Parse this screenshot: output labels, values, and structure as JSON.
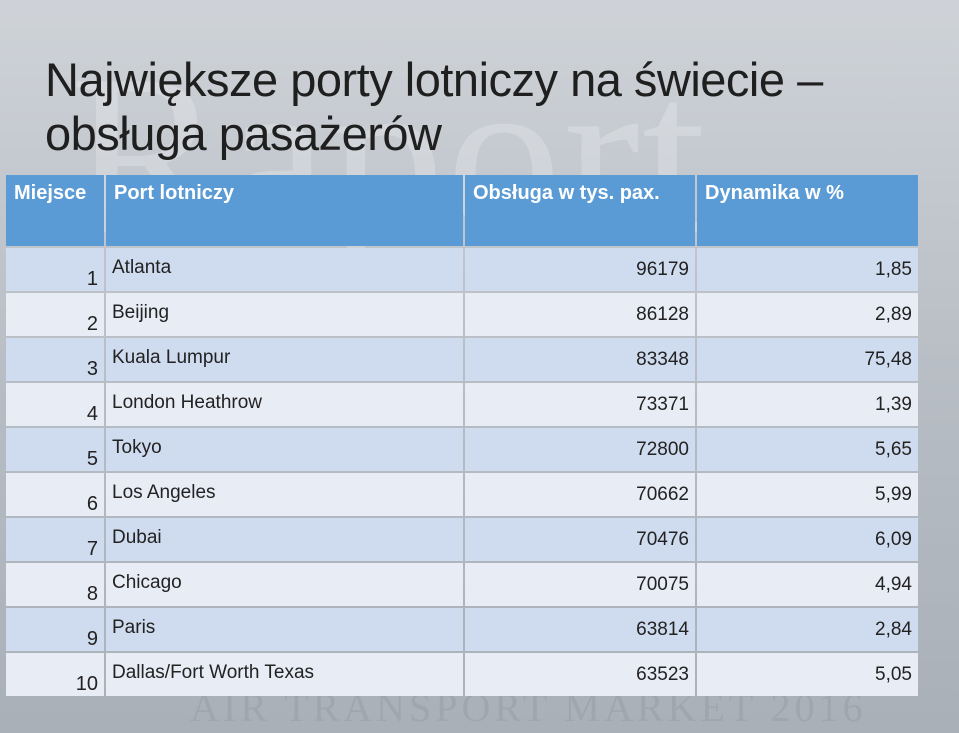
{
  "title": {
    "line1": "Największe porty lotniczy na świecie –",
    "line2": "obsługa pasażerów"
  },
  "watermark": {
    "text": "Raport",
    "bottom_text": "AIR TRANSPORT MARKET 2016"
  },
  "table": {
    "headers": [
      "Miejsce",
      "Port lotniczy",
      "Obsługa w tys. pax.",
      "Dynamika w %"
    ],
    "rows": [
      {
        "rank": "1",
        "airport": "Atlanta",
        "pax": "96179",
        "growth": "1,85"
      },
      {
        "rank": "2",
        "airport": "Beijing",
        "pax": "86128",
        "growth": "2,89"
      },
      {
        "rank": "3",
        "airport": "Kuala Lumpur",
        "pax": "83348",
        "growth": "75,48"
      },
      {
        "rank": "4",
        "airport": "London Heathrow",
        "pax": "73371",
        "growth": "1,39"
      },
      {
        "rank": "5",
        "airport": "Tokyo",
        "pax": "72800",
        "growth": "5,65"
      },
      {
        "rank": "6",
        "airport": "Los Angeles",
        "pax": "70662",
        "growth": "5,99"
      },
      {
        "rank": "7",
        "airport": "Dubai",
        "pax": "70476",
        "growth": "6,09"
      },
      {
        "rank": "8",
        "airport": "Chicago",
        "pax": "70075",
        "growth": "4,94"
      },
      {
        "rank": "9",
        "airport": "Paris",
        "pax": "63814",
        "growth": "2,84"
      },
      {
        "rank": "10",
        "airport": "Dallas/Fort Worth Texas",
        "pax": "63523",
        "growth": "5,05"
      }
    ]
  },
  "colors": {
    "header_bg": "#5b9bd5",
    "row_odd_bg": "#cfdbee",
    "row_even_bg": "#e8ecf5"
  }
}
